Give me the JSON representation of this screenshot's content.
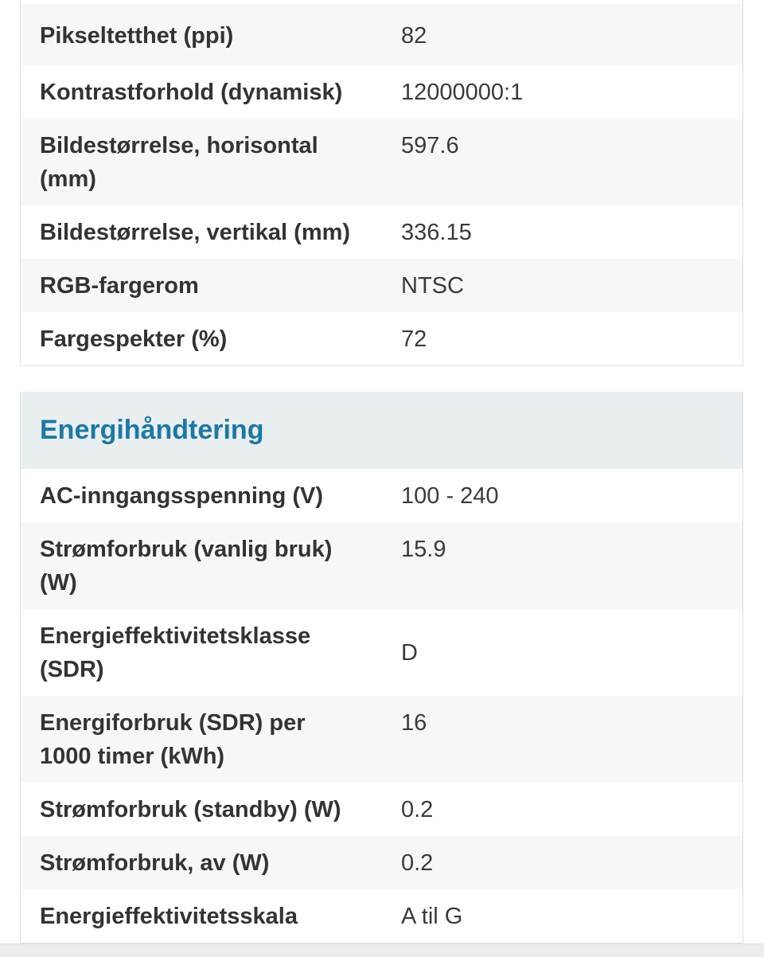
{
  "colors": {
    "stripe_row_bg": "#f7f7f7",
    "section_header_bg": "#e9eef1",
    "section_title_text": "#1c78a6",
    "label_text": "#333333",
    "value_text": "#3a3a3a",
    "bottom_strip_bg": "#ededed"
  },
  "display_table": {
    "rows": [
      {
        "label": "Pikseltetthet (ppi)",
        "value": "82"
      },
      {
        "label": "Kontrastforhold (dynamisk)",
        "value": "12000000:1"
      },
      {
        "label": "Bildestørrelse, horisontal (mm)",
        "value": "597.6"
      },
      {
        "label": "Bildestørrelse, vertikal (mm)",
        "value": "336.15"
      },
      {
        "label": "RGB-fargerom",
        "value": "NTSC"
      },
      {
        "label": "Fargespekter (%)",
        "value": "72"
      }
    ]
  },
  "energy_section": {
    "title": "Energihåndtering",
    "rows": [
      {
        "label": "AC-inngangsspenning (V)",
        "value": "100 - 240"
      },
      {
        "label": "Strømforbruk (vanlig bruk) (W)",
        "value": "15.9"
      },
      {
        "label": "Energieffektivitetsklasse (SDR)",
        "value": "D"
      },
      {
        "label": "Energiforbruk (SDR) per 1000 timer (kWh)",
        "value": "16"
      },
      {
        "label": "Strømforbruk (standby) (W)",
        "value": "0.2"
      },
      {
        "label": "Strømforbruk, av (W)",
        "value": "0.2"
      },
      {
        "label": "Energieffektivitetsskala",
        "value": "A til G"
      }
    ]
  }
}
